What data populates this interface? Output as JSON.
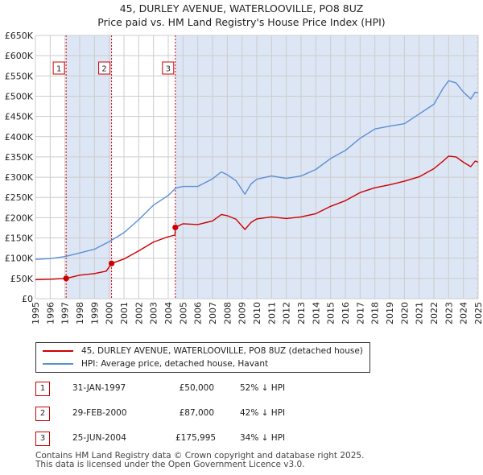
{
  "title_line1": "45, DURLEY AVENUE, WATERLOOVILLE, PO8 8UZ",
  "title_line2": "Price paid vs. HM Land Registry's House Price Index (HPI)",
  "colors": {
    "property": "#cc0000",
    "hpi": "#5b8fd6",
    "shade": "#dde6f5",
    "grid": "#cccccc"
  },
  "chart_data": {
    "type": "line",
    "title": "Price paid vs. HM Land Registry's House Price Index (HPI)",
    "xlabel": "",
    "ylabel": "",
    "xlim": [
      1995,
      2025
    ],
    "ylim": [
      0,
      650000
    ],
    "x_ticks": [
      1995,
      1996,
      1997,
      1998,
      1999,
      2000,
      2001,
      2002,
      2003,
      2004,
      2005,
      2006,
      2007,
      2008,
      2009,
      2010,
      2011,
      2012,
      2013,
      2014,
      2015,
      2016,
      2017,
      2018,
      2019,
      2020,
      2021,
      2022,
      2023,
      2024,
      2025
    ],
    "y_ticks": [
      {
        "value": 0,
        "label": "£0"
      },
      {
        "value": 50000,
        "label": "£50K"
      },
      {
        "value": 100000,
        "label": "£100K"
      },
      {
        "value": 150000,
        "label": "£150K"
      },
      {
        "value": 200000,
        "label": "£200K"
      },
      {
        "value": 250000,
        "label": "£250K"
      },
      {
        "value": 300000,
        "label": "£300K"
      },
      {
        "value": 350000,
        "label": "£350K"
      },
      {
        "value": 400000,
        "label": "£400K"
      },
      {
        "value": 450000,
        "label": "£450K"
      },
      {
        "value": 500000,
        "label": "£500K"
      },
      {
        "value": 550000,
        "label": "£550K"
      },
      {
        "value": 600000,
        "label": "£600K"
      },
      {
        "value": 650000,
        "label": "£650K"
      }
    ],
    "shaded_ranges": [
      [
        1997.08,
        2000.16
      ],
      [
        2004.48,
        2025
      ]
    ],
    "hatched_from": 2024.9,
    "series": [
      {
        "name": "45, DURLEY AVENUE, WATERLOOVILLE, PO8 8UZ (detached house)",
        "x": [
          1995,
          1996,
          1997.08,
          1998,
          1999,
          1999.8,
          2000.16,
          2001,
          2002,
          2003,
          2004,
          2004.45,
          2004.48,
          2005,
          2006,
          2007,
          2007.6,
          2008,
          2008.6,
          2009.2,
          2009.6,
          2010,
          2011,
          2012,
          2013,
          2014,
          2015,
          2016,
          2017,
          2018,
          2019,
          2020,
          2021,
          2022,
          2022.7,
          2023,
          2023.5,
          2024,
          2024.5,
          2024.8,
          2025
        ],
        "values": [
          47000,
          48000,
          50000,
          58000,
          62000,
          68000,
          87000,
          98000,
          118000,
          140000,
          153000,
          157000,
          175995,
          185000,
          183000,
          192000,
          208000,
          205000,
          196000,
          171000,
          188000,
          197000,
          202000,
          198000,
          202000,
          210000,
          228000,
          242000,
          262000,
          274000,
          281000,
          290000,
          301000,
          321000,
          342000,
          352000,
          350000,
          337000,
          326000,
          340000,
          337000
        ]
      },
      {
        "name": "HPI: Average price, detached house, Havant",
        "x": [
          1995,
          1996,
          1997,
          1998,
          1999,
          2000,
          2001,
          2002,
          2003,
          2004,
          2004.5,
          2005,
          2006,
          2007,
          2007.6,
          2008,
          2008.6,
          2009.2,
          2009.6,
          2010,
          2011,
          2012,
          2013,
          2014,
          2015,
          2016,
          2017,
          2018,
          2019,
          2020,
          2021,
          2022,
          2022.6,
          2023,
          2023.5,
          2024,
          2024.5,
          2024.8,
          2025
        ],
        "values": [
          97000,
          99000,
          104000,
          113000,
          122000,
          141000,
          163000,
          195000,
          231000,
          255000,
          273000,
          277000,
          277000,
          296000,
          313000,
          306000,
          291000,
          258000,
          283000,
          295000,
          303000,
          297000,
          303000,
          319000,
          346000,
          366000,
          396000,
          419000,
          426000,
          432000,
          456000,
          480000,
          518000,
          538000,
          533000,
          510000,
          493000,
          510000,
          508000
        ]
      }
    ],
    "sale_markers": [
      {
        "label": "1",
        "x": 1997.08,
        "value": 50000
      },
      {
        "label": "2",
        "x": 2000.16,
        "value": 87000
      },
      {
        "label": "3",
        "x": 2004.48,
        "value": 175995
      }
    ]
  },
  "legend": {
    "property_label": "45, DURLEY AVENUE, WATERLOOVILLE, PO8 8UZ (detached house)",
    "hpi_label": "HPI: Average price, detached house, Havant"
  },
  "sales": [
    {
      "num": "1",
      "date": "31-JAN-1997",
      "price": "£50,000",
      "hpi": "52% ↓ HPI"
    },
    {
      "num": "2",
      "date": "29-FEB-2000",
      "price": "£87,000",
      "hpi": "42% ↓ HPI"
    },
    {
      "num": "3",
      "date": "25-JUN-2004",
      "price": "£175,995",
      "hpi": "34% ↓ HPI"
    }
  ],
  "footer_line1": "Contains HM Land Registry data © Crown copyright and database right 2025.",
  "footer_line2": "This data is licensed under the Open Government Licence v3.0."
}
